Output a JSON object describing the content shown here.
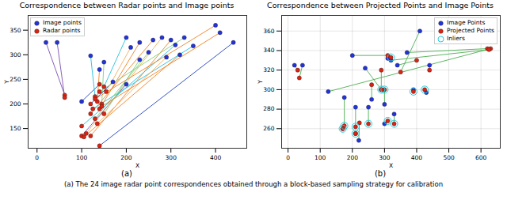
{
  "chart_data": [
    {
      "type": "scatter",
      "title": "Correspondence between Radar points and Image points",
      "subfigure": "(a)",
      "x_label": "X",
      "y_label": "Y",
      "xlim": [
        -20,
        470
      ],
      "ylim": [
        110,
        380
      ],
      "xticks": [
        0,
        100,
        200,
        300,
        400
      ],
      "yticks": [
        150,
        200,
        250,
        300,
        350
      ],
      "grid": false,
      "legend": "upper left",
      "links": {
        "colors": [
          "#7b4fb0",
          "#7b4fb0",
          "#2040c0",
          "#20c0e0",
          "#f08020",
          "#80d080",
          "#2040c0",
          "#20c0e0",
          "#7b4fb0",
          "#f0b060",
          "#f08020",
          "#80d080",
          "#f08020",
          "#f0b060",
          "#f08020",
          "#20c0e0",
          "#f08020",
          "#80d080",
          "#20c0e0",
          "#f08020",
          "#f08020",
          "#2040c0",
          "#f0b060",
          "#80d080"
        ]
      },
      "series": [
        {
          "name": "Image points",
          "color": "#2233dd",
          "marker": "circle",
          "x": [
            20,
            45,
            100,
            120,
            140,
            150,
            170,
            200,
            200,
            210,
            230,
            250,
            260,
            280,
            300,
            310,
            320,
            330,
            350,
            400,
            410,
            440,
            290,
            230
          ],
          "y": [
            325,
            325,
            205,
            298,
            270,
            285,
            245,
            335,
            240,
            315,
            325,
            305,
            330,
            335,
            330,
            320,
            300,
            335,
            318,
            360,
            345,
            325,
            295,
            290
          ]
        },
        {
          "name": "Radar points",
          "color": "#dd2211",
          "marker": "circle",
          "x": [
            62,
            62,
            140,
            130,
            135,
            145,
            120,
            150,
            100,
            155,
            140,
            130,
            120,
            110,
            120,
            100,
            105,
            140,
            125,
            130,
            145,
            140,
            135,
            150
          ],
          "y": [
            218,
            213,
            240,
            215,
            205,
            200,
            200,
            235,
            135,
            225,
            190,
            170,
            180,
            140,
            135,
            155,
            133,
            225,
            190,
            210,
            195,
            115,
            160,
            180
          ]
        }
      ]
    },
    {
      "type": "scatter",
      "title": "Correspondence between Projected Points and Image Points",
      "subfigure": "(b)",
      "x_label": "X",
      "y_label": "Y",
      "xlim": [
        -20,
        660
      ],
      "ylim": [
        240,
        376
      ],
      "xticks": [
        0,
        100,
        200,
        300,
        400,
        500,
        600
      ],
      "yticks": [
        260,
        280,
        300,
        320,
        340,
        360
      ],
      "grid": true,
      "legend": "upper right",
      "links": {
        "color": "#4caf50"
      },
      "series": [
        {
          "name": "Image Points",
          "color": "#2233dd",
          "marker": "circle",
          "x": [
            20,
            45,
            125,
            175,
            170,
            210,
            220,
            200,
            210,
            250,
            260,
            290,
            300,
            310,
            330,
            340,
            370,
            390,
            410,
            430,
            440,
            320,
            240,
            300
          ],
          "y": [
            325,
            325,
            298,
            292,
            260,
            255,
            248,
            335,
            282,
            282,
            290,
            300,
            285,
            332,
            275,
            325,
            338,
            300,
            360,
            297,
            325,
            330,
            322,
            265
          ]
        },
        {
          "name": "Projected Points",
          "color": "#dd2211",
          "marker": "circle",
          "x": [
            30,
            35,
            630,
            175,
            170,
            210,
            222,
            310,
            210,
            250,
            260,
            290,
            300,
            320,
            330,
            400,
            620,
            390,
            350,
            425,
            440,
            625,
            290,
            310
          ],
          "y": [
            320,
            312,
            342,
            263,
            260,
            255,
            266,
            335,
            262,
            265,
            305,
            320,
            300,
            333,
            265,
            330,
            342,
            298,
            318,
            300,
            320,
            341,
            300,
            268
          ]
        },
        {
          "name": "Inliers",
          "color": "#22ccdd",
          "marker": "ring",
          "x": [
            175,
            170,
            210,
            210,
            250,
            330,
            300,
            390,
            425,
            290,
            310,
            320
          ],
          "y": [
            263,
            260,
            255,
            262,
            265,
            265,
            300,
            298,
            300,
            300,
            268,
            333
          ]
        }
      ]
    }
  ],
  "caption": "(a) The 24 image radar point correspondences obtained through a block-based sampling strategy for calibration"
}
